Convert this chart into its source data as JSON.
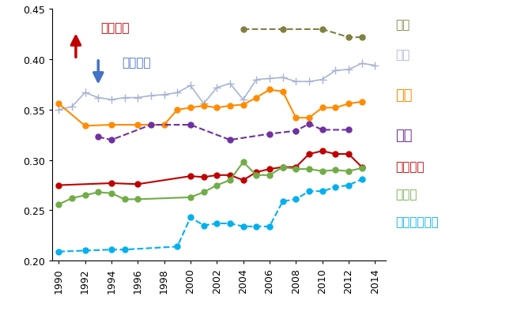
{
  "ylim": [
    0.2,
    0.45
  ],
  "yticks": [
    0.2,
    0.25,
    0.3,
    0.35,
    0.4,
    0.45
  ],
  "xticks": [
    1990,
    1992,
    1994,
    1996,
    1998,
    2000,
    2002,
    2004,
    2006,
    2008,
    2010,
    2012,
    2014
  ],
  "series": {
    "中国": {
      "color": "#808040",
      "linestyle": "--",
      "marker": "o",
      "markersize": 5,
      "linewidth": 1.5,
      "years": [
        2004,
        2007,
        2010,
        2012,
        2013
      ],
      "values": [
        0.43,
        0.43,
        0.43,
        0.422,
        0.422
      ]
    },
    "米国": {
      "color": "#aab4d4",
      "linestyle": "-",
      "marker": "+",
      "markersize": 7,
      "linewidth": 1.2,
      "years": [
        1990,
        1991,
        1992,
        1993,
        1994,
        1995,
        1996,
        1997,
        1998,
        1999,
        2000,
        2001,
        2002,
        2003,
        2004,
        2005,
        2006,
        2007,
        2008,
        2009,
        2010,
        2011,
        2012,
        2013,
        2014
      ],
      "values": [
        0.35,
        0.353,
        0.367,
        0.362,
        0.36,
        0.362,
        0.362,
        0.364,
        0.365,
        0.367,
        0.374,
        0.356,
        0.372,
        0.376,
        0.36,
        0.38,
        0.381,
        0.382,
        0.378,
        0.378,
        0.38,
        0.389,
        0.39,
        0.396,
        0.394
      ]
    },
    "英国": {
      "color": "#ff8c00",
      "linestyle": "-",
      "marker": "o",
      "markersize": 5,
      "linewidth": 1.5,
      "years": [
        1990,
        1992,
        1994,
        1996,
        1998,
        1999,
        2000,
        2001,
        2002,
        2003,
        2004,
        2005,
        2006,
        2007,
        2008,
        2009,
        2010,
        2011,
        2012,
        2013
      ],
      "values": [
        0.356,
        0.334,
        0.335,
        0.335,
        0.335,
        0.35,
        0.352,
        0.354,
        0.352,
        0.354,
        0.355,
        0.362,
        0.37,
        0.368,
        0.342,
        0.342,
        0.352,
        0.352,
        0.356,
        0.358
      ]
    },
    "日本": {
      "color": "#7030a0",
      "linestyle": "--",
      "marker": "o",
      "markersize": 5,
      "linewidth": 1.5,
      "years": [
        1993,
        1994,
        1997,
        2000,
        2003,
        2006,
        2008,
        2009,
        2010,
        2012
      ],
      "values": [
        0.323,
        0.32,
        0.335,
        0.335,
        0.32,
        0.326,
        0.329,
        0.336,
        0.33,
        0.33
      ]
    },
    "フランス": {
      "color": "#c00000",
      "linestyle": "-",
      "marker": "o",
      "markersize": 5,
      "linewidth": 1.5,
      "years": [
        1990,
        1994,
        1996,
        2000,
        2001,
        2002,
        2003,
        2004,
        2005,
        2006,
        2007,
        2008,
        2009,
        2010,
        2011,
        2012,
        2013
      ],
      "values": [
        0.275,
        0.277,
        0.276,
        0.284,
        0.283,
        0.285,
        0.285,
        0.28,
        0.288,
        0.291,
        0.293,
        0.293,
        0.306,
        0.309,
        0.306,
        0.306,
        0.293
      ]
    },
    "ドイツ": {
      "color": "#70ad47",
      "linestyle": "-",
      "marker": "o",
      "markersize": 5,
      "linewidth": 1.5,
      "years": [
        1990,
        1991,
        1992,
        1993,
        1994,
        1995,
        1996,
        2000,
        2001,
        2002,
        2003,
        2004,
        2005,
        2006,
        2007,
        2008,
        2009,
        2010,
        2011,
        2012,
        2013
      ],
      "values": [
        0.256,
        0.262,
        0.265,
        0.268,
        0.267,
        0.261,
        0.261,
        0.263,
        0.268,
        0.275,
        0.28,
        0.298,
        0.285,
        0.285,
        0.293,
        0.291,
        0.291,
        0.289,
        0.29,
        0.289,
        0.292
      ]
    },
    "スウェーデン": {
      "color": "#00b0f0",
      "linestyle": "--",
      "marker": "o",
      "markersize": 5,
      "linewidth": 1.5,
      "years": [
        1990,
        1992,
        1994,
        1995,
        1999,
        2000,
        2001,
        2002,
        2003,
        2004,
        2005,
        2006,
        2007,
        2008,
        2009,
        2010,
        2011,
        2012,
        2013
      ],
      "values": [
        0.209,
        0.21,
        0.211,
        0.211,
        0.214,
        0.243,
        0.235,
        0.237,
        0.237,
        0.234,
        0.234,
        0.234,
        0.259,
        0.261,
        0.269,
        0.269,
        0.273,
        0.275,
        0.281
      ]
    }
  },
  "legend_order": [
    "中国",
    "米国",
    "英国",
    "日本",
    "フランス",
    "ドイツ",
    "スウェーデン"
  ],
  "legend_colors": {
    "中国": "#808040",
    "米国": "#aab4d4",
    "英国": "#ff8c00",
    "日本": "#7030a0",
    "フランス": "#c00000",
    "ドイツ": "#70ad47",
    "スウェーデン": "#00b0f0"
  },
  "legend_fontsizes": {
    "中国": 11,
    "米国": 11,
    "英国": 13,
    "日本": 13,
    "フランス": 11,
    "ドイツ": 11,
    "スウェーデン": 11
  },
  "arrow_up_color": "#c00000",
  "arrow_down_color": "#4472c4",
  "kakaku_kakudai_text": "格差拡大",
  "kakaku_shukusho_text": "格差縮小",
  "annotation_fontsize": 11,
  "background_color": "#ffffff"
}
